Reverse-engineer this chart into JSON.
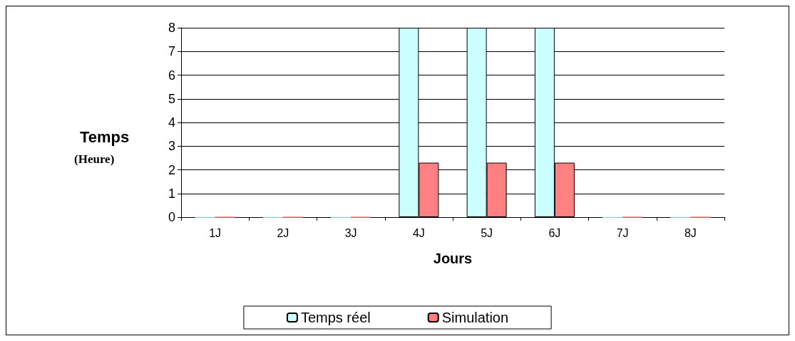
{
  "chart_data": {
    "type": "bar",
    "xlabel": "Jours",
    "ylabel": "Temps\n(Heure)",
    "categories": [
      "1J",
      "2J",
      "3J",
      "4J",
      "5J",
      "6J",
      "7J",
      "8J"
    ],
    "series": [
      {
        "name": "Temps réel",
        "color": "#ccffff",
        "values": [
          0,
          0,
          0,
          8,
          8,
          8,
          0,
          0
        ]
      },
      {
        "name": "Simulation",
        "color": "#ff8080",
        "values": [
          0,
          0,
          0,
          2.3,
          2.3,
          2.3,
          0,
          0
        ]
      }
    ],
    "ylim": [
      0,
      8
    ],
    "yticks": [
      0,
      1,
      2,
      3,
      4,
      5,
      6,
      7,
      8
    ],
    "grid": "y",
    "legend": "bottom"
  }
}
